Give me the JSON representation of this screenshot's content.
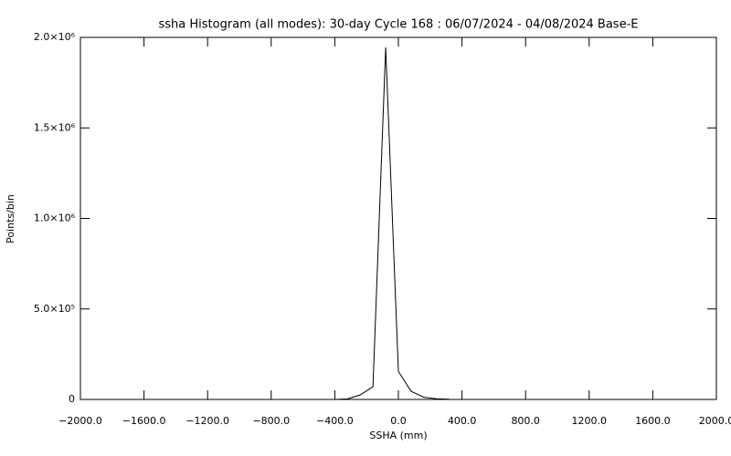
{
  "chart_data": {
    "type": "line",
    "title": "ssha Histogram (all modes): 30-day Cycle 168 : 06/07/2024 - 04/08/2024 Base-E",
    "x_label": "SSHA (mm)",
    "y_label": "Points/bin",
    "x": [
      -400,
      -320,
      -240,
      -160,
      -80,
      0,
      80,
      160,
      240,
      320
    ],
    "values": [
      0,
      3000,
      25000,
      70000,
      1945000,
      155000,
      45000,
      12000,
      4000,
      1000
    ],
    "color": "#000000",
    "xlim": [
      -2000,
      2000
    ],
    "xticks": [
      {
        "value": -2000,
        "label": "−2000.0"
      },
      {
        "value": -1600,
        "label": "−1600.0"
      },
      {
        "value": -1200,
        "label": "−1200.0"
      },
      {
        "value": -800,
        "label": "−800.0"
      },
      {
        "value": -400,
        "label": "−400.0"
      },
      {
        "value": 0,
        "label": "0.0"
      },
      {
        "value": 400,
        "label": "400.0"
      },
      {
        "value": 800,
        "label": "800.0"
      },
      {
        "value": 1200,
        "label": "1200.0"
      },
      {
        "value": 1600,
        "label": "1600.0"
      },
      {
        "value": 2000,
        "label": "2000.0"
      }
    ],
    "ylim": [
      0,
      2000000
    ],
    "yticks": [
      0,
      {
        "value": 500000,
        "label": "5.0×10⁵"
      },
      {
        "value": 1000000,
        "label": "1.0×10⁶"
      },
      {
        "value": 1500000,
        "label": "1.5×10⁶"
      },
      {
        "value": 2000000,
        "label": "2.0×10⁶"
      }
    ],
    "grid": false
  }
}
